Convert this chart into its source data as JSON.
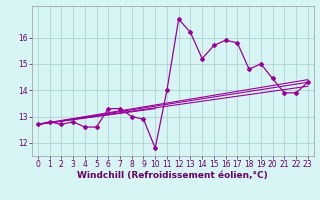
{
  "xlabel": "Windchill (Refroidissement éolien,°C)",
  "bg_color": "#d8f5f5",
  "line_color": "#990099",
  "tick_color": "#660066",
  "xlim": [
    -0.5,
    23.5
  ],
  "ylim": [
    11.5,
    17.2
  ],
  "xticks": [
    0,
    1,
    2,
    3,
    4,
    5,
    6,
    7,
    8,
    9,
    10,
    11,
    12,
    13,
    14,
    15,
    16,
    17,
    18,
    19,
    20,
    21,
    22,
    23
  ],
  "yticks": [
    12,
    13,
    14,
    15,
    16
  ],
  "series": [
    [
      0,
      12.7
    ],
    [
      1,
      12.8
    ],
    [
      2,
      12.7
    ],
    [
      3,
      12.8
    ],
    [
      4,
      12.6
    ],
    [
      5,
      12.6
    ],
    [
      6,
      13.3
    ],
    [
      7,
      13.3
    ],
    [
      8,
      13.0
    ],
    [
      9,
      12.9
    ],
    [
      10,
      11.8
    ],
    [
      11,
      14.0
    ],
    [
      12,
      16.7
    ],
    [
      13,
      16.2
    ],
    [
      14,
      15.2
    ],
    [
      15,
      15.7
    ],
    [
      16,
      15.9
    ],
    [
      17,
      15.8
    ],
    [
      18,
      14.8
    ],
    [
      19,
      15.0
    ],
    [
      20,
      14.45
    ],
    [
      21,
      13.9
    ],
    [
      22,
      13.9
    ],
    [
      23,
      14.3
    ]
  ],
  "trend_lines": [
    {
      "x": [
        0,
        23
      ],
      "y": [
        12.7,
        14.3
      ]
    },
    {
      "x": [
        0,
        23
      ],
      "y": [
        12.7,
        14.15
      ]
    },
    {
      "x": [
        0,
        10
      ],
      "y": [
        12.7,
        13.3
      ]
    },
    {
      "x": [
        0,
        23
      ],
      "y": [
        12.7,
        14.4
      ]
    }
  ],
  "grid_color": "#aacccc",
  "tick_fontsize": 5.5,
  "label_fontsize": 6.5
}
